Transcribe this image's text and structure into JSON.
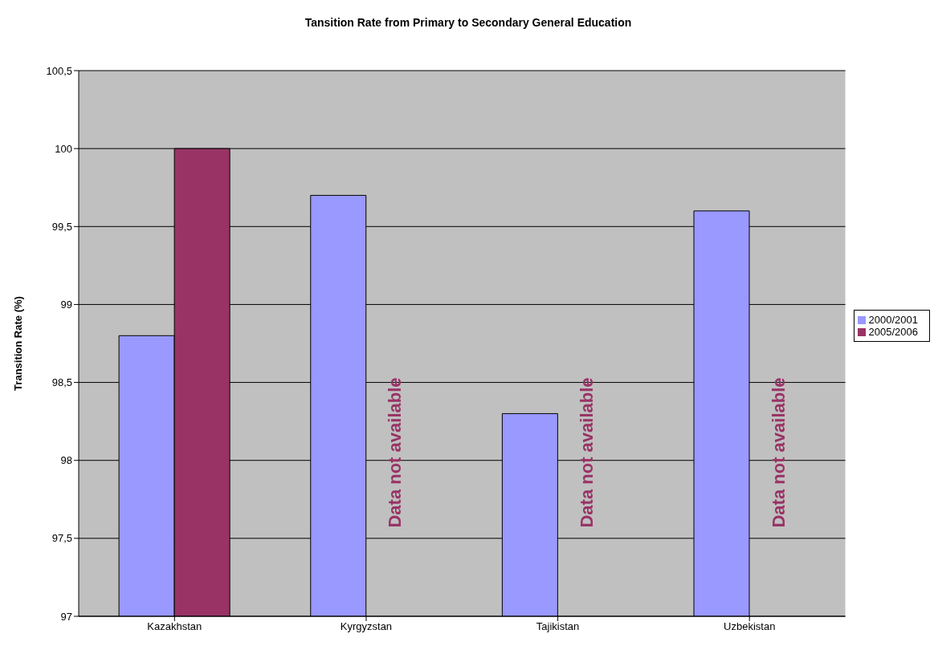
{
  "chart_data": {
    "type": "bar",
    "title": "Tansition Rate from Primary to Secondary General Education",
    "ylabel": "Transition Rate (%)",
    "categories": [
      "Kazakhstan",
      "Kyrgyzstan",
      "Tajikistan",
      "Uzbekistan"
    ],
    "series": [
      {
        "name": "2000/2001",
        "color": "#9999ff",
        "values": [
          98.8,
          99.7,
          98.3,
          99.6
        ]
      },
      {
        "name": "2005/2006",
        "color": "#993366",
        "values": [
          100,
          null,
          null,
          null
        ]
      }
    ],
    "ylim": [
      97,
      100.5
    ],
    "yticks": [
      97,
      {
        "value": 97.5,
        "label": "97,5"
      },
      98,
      {
        "value": 98.5,
        "label": "98,5"
      },
      99,
      {
        "value": 99.5,
        "label": "99,5"
      },
      100,
      {
        "value": 100.5,
        "label": "100,5"
      }
    ],
    "grid": "y",
    "legend": "right",
    "annotations": [
      {
        "text": "Data not available",
        "x": "Kyrgyzstan",
        "y": 98.05
      },
      {
        "text": "Data not available",
        "x": "Tajikistan",
        "y": 98.05
      },
      {
        "text": "Data not available",
        "x": "Uzbekistan",
        "y": 98.05
      }
    ]
  }
}
